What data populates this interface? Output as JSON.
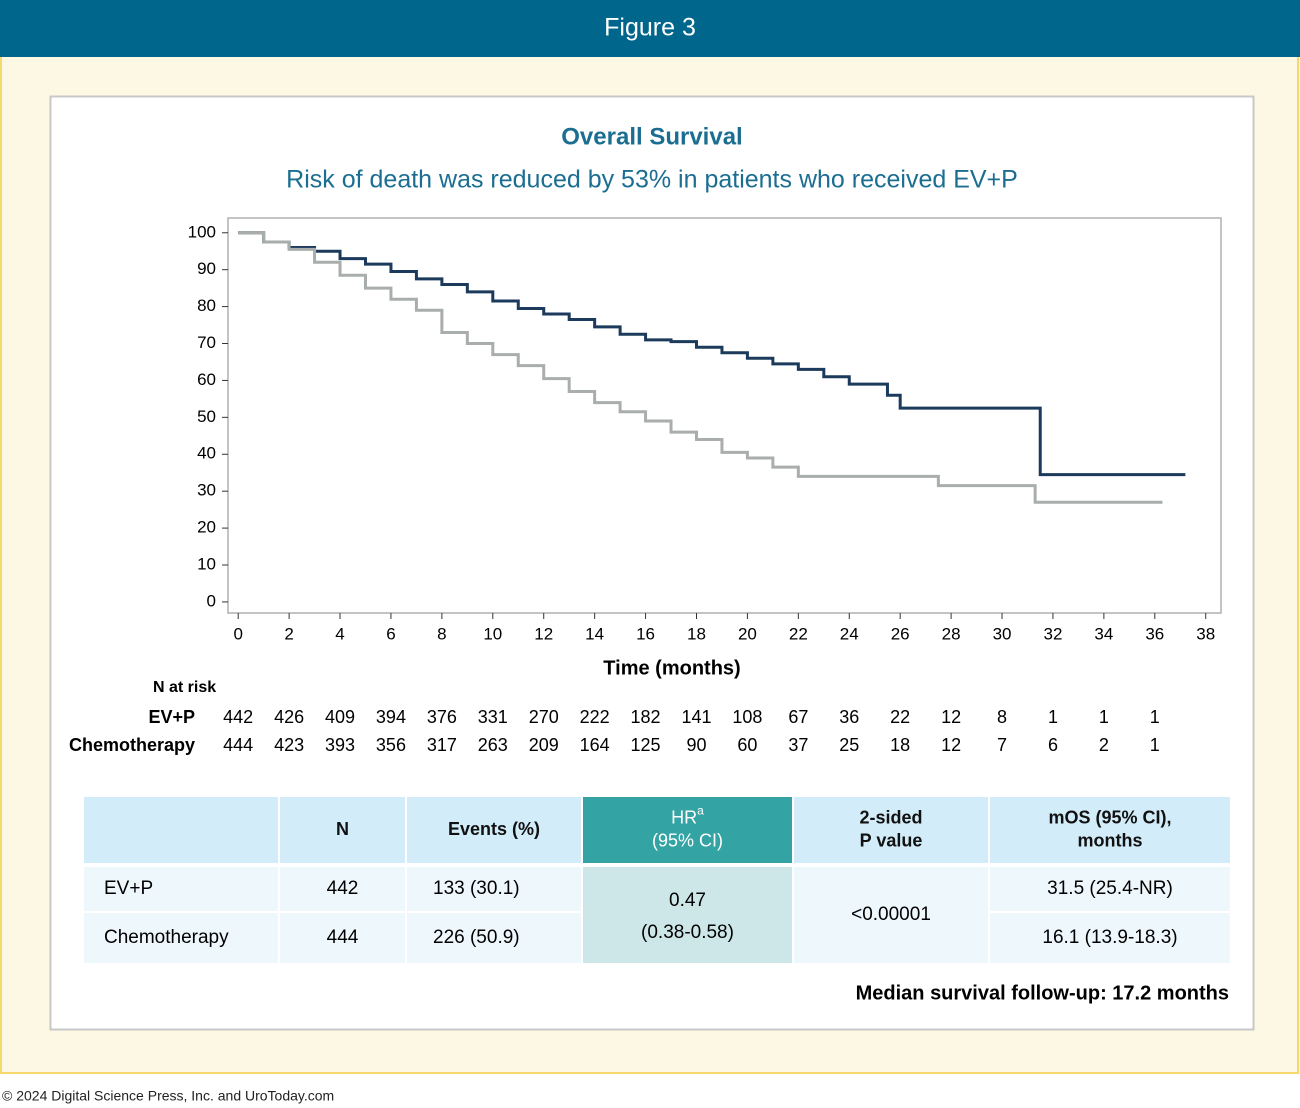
{
  "header": {
    "title": "Figure 3"
  },
  "chart_data": {
    "type": "line",
    "step": true,
    "title": "Overall Survival",
    "subtitle": "Risk of death was reduced by 53% in patients who received EV+P",
    "x_label": "Time (months)",
    "xlim": [
      -0.4,
      38.6
    ],
    "ylim": [
      -3,
      104
    ],
    "xticks": [
      0,
      2,
      4,
      6,
      8,
      10,
      12,
      14,
      16,
      18,
      20,
      22,
      24,
      26,
      28,
      30,
      32,
      34,
      36,
      38
    ],
    "yticks": [
      0,
      10,
      20,
      30,
      40,
      50,
      60,
      70,
      80,
      90,
      100
    ],
    "series": [
      {
        "name": "EV+P",
        "color": "#1b3a5c",
        "x": [
          0,
          1,
          2,
          3,
          4,
          5,
          6,
          7,
          8,
          9,
          10,
          11,
          12,
          13,
          14,
          15,
          16,
          17,
          18,
          19,
          20,
          21,
          22,
          23,
          24,
          25.5,
          26,
          31.5,
          37.2
        ],
        "values": [
          100,
          97.5,
          96,
          95,
          93,
          91.5,
          89.5,
          87.5,
          86,
          84,
          81.5,
          79.5,
          78,
          76.5,
          74.5,
          72.5,
          71,
          70.5,
          69,
          67.5,
          66,
          64.5,
          63,
          61,
          59,
          56,
          52.5,
          34.5,
          34.5
        ]
      },
      {
        "name": "Chemotherapy",
        "color": "#a9aeab",
        "x": [
          0,
          1,
          2,
          3,
          4,
          5,
          6,
          7,
          8,
          9,
          10,
          11,
          12,
          13,
          14,
          15,
          16,
          17,
          18,
          19,
          20,
          21,
          22,
          27.5,
          31.3,
          36.3
        ],
        "values": [
          100,
          97.5,
          95.5,
          92,
          88.5,
          85,
          82,
          79,
          73,
          70,
          67,
          64,
          60.5,
          57,
          54,
          51.5,
          49,
          46,
          44,
          40.5,
          39,
          36.5,
          34,
          31.5,
          27,
          27
        ]
      }
    ],
    "at_risk": {
      "title": "N at risk",
      "rows": [
        {
          "name": "EV+P",
          "values": [
            442,
            426,
            409,
            394,
            376,
            331,
            270,
            222,
            182,
            141,
            108,
            67,
            36,
            22,
            12,
            8,
            1,
            1,
            1
          ]
        },
        {
          "name": "Chemotherapy",
          "values": [
            444,
            423,
            393,
            356,
            317,
            263,
            209,
            164,
            125,
            90,
            60,
            37,
            25,
            18,
            12,
            7,
            6,
            2,
            1
          ]
        }
      ]
    }
  },
  "table": {
    "columns": [
      {
        "lines": [
          "N"
        ]
      },
      {
        "lines": [
          "Events (%)"
        ]
      },
      {
        "lines": [
          "HR",
          "(95% CI)"
        ],
        "sup": "a"
      },
      {
        "lines": [
          "2-sided",
          "P value"
        ]
      },
      {
        "lines": [
          "mOS (95% CI),",
          "months"
        ]
      }
    ],
    "rows": [
      {
        "arm": "EV+P",
        "n": "442",
        "events": "133 (30.1)",
        "mos": "31.5 (25.4-NR)"
      },
      {
        "arm": "Chemotherapy",
        "n": "444",
        "events": "226 (50.9)",
        "mos": "16.1 (13.9-18.3)"
      }
    ],
    "hr": [
      "0.47",
      "(0.38-0.58)"
    ],
    "p_value": "<0.00001"
  },
  "footnote": "Median survival follow-up: 17.2 months",
  "copyright": "© 2024 Digital Science Press, Inc. and UroToday.com"
}
